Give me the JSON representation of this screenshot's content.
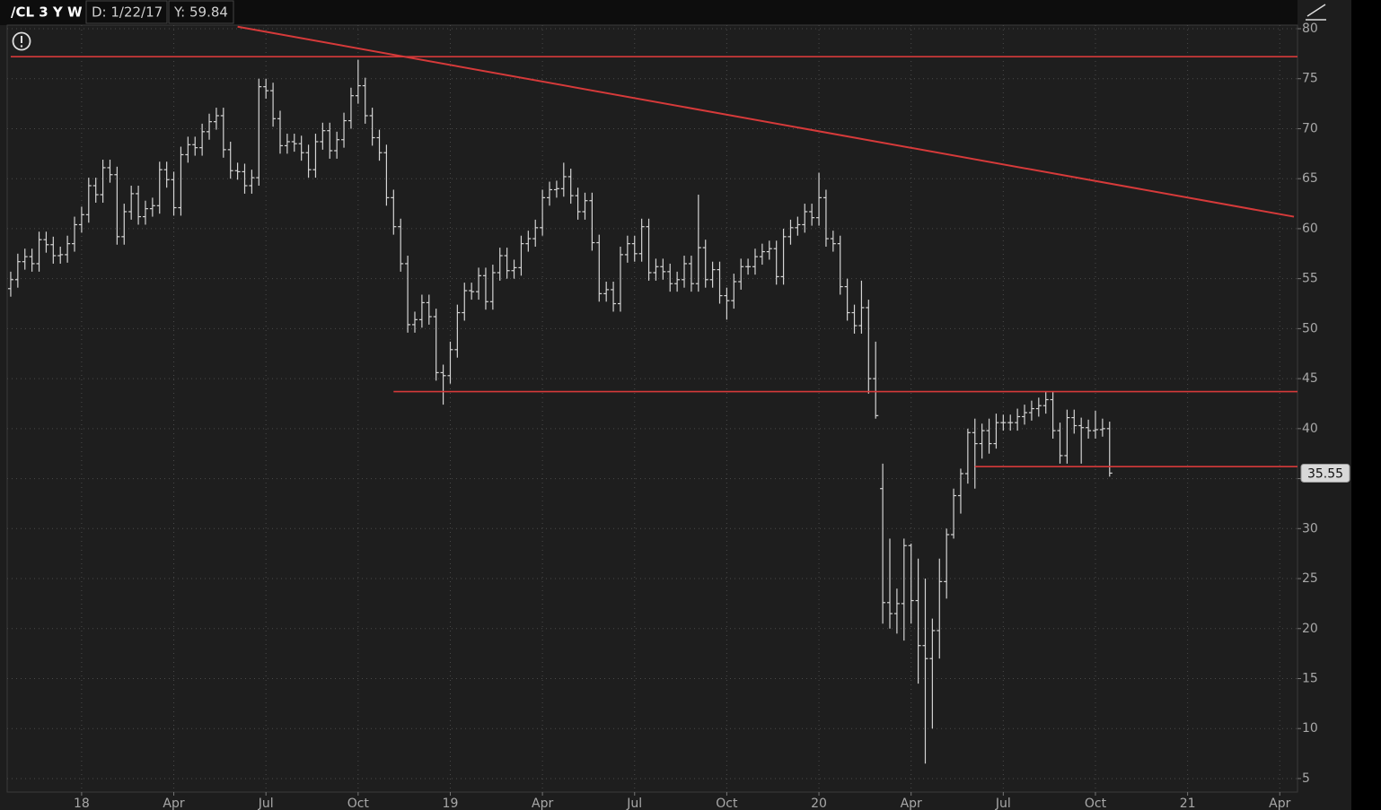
{
  "chart_data": {
    "type": "ohlc",
    "title": "/CL 3 Y W",
    "cursor_date": "D: 1/22/17",
    "cursor_value": "Y: 59.84",
    "color": "#d4d4d4",
    "level_color": "#d63a3a",
    "grid": true,
    "ylim": [
      3.65,
      80.36
    ],
    "yticks": [
      5,
      10,
      15,
      20,
      25,
      30,
      35,
      40,
      45,
      50,
      55,
      60,
      65,
      70,
      75,
      80
    ],
    "categories": [
      null,
      null,
      null,
      null,
      null,
      null,
      null,
      null,
      null,
      null,
      "18",
      null,
      null,
      null,
      null,
      null,
      null,
      null,
      null,
      null,
      null,
      null,
      null,
      "Apr",
      null,
      null,
      null,
      null,
      null,
      null,
      null,
      null,
      null,
      null,
      null,
      null,
      "Jul",
      null,
      null,
      null,
      null,
      null,
      null,
      null,
      null,
      null,
      null,
      null,
      null,
      "Oct",
      null,
      null,
      null,
      null,
      null,
      null,
      null,
      null,
      null,
      null,
      null,
      null,
      "19",
      null,
      null,
      null,
      null,
      null,
      null,
      null,
      null,
      null,
      null,
      null,
      null,
      "Apr",
      null,
      null,
      null,
      null,
      null,
      null,
      null,
      null,
      null,
      null,
      null,
      null,
      "Jul",
      null,
      null,
      null,
      null,
      null,
      null,
      null,
      null,
      null,
      null,
      null,
      null,
      "Oct",
      null,
      null,
      null,
      null,
      null,
      null,
      null,
      null,
      null,
      null,
      null,
      null,
      "20",
      null,
      null,
      null,
      null,
      null,
      null,
      null,
      null,
      null,
      null,
      null,
      null,
      "Apr",
      null,
      null,
      null,
      null,
      null,
      null,
      null,
      null,
      null,
      null,
      null,
      null,
      "Jul",
      null,
      null,
      null,
      null,
      null,
      null,
      null,
      null,
      null,
      null,
      null,
      null,
      "Oct",
      null,
      null,
      null,
      null,
      null,
      null,
      null,
      null,
      null,
      null,
      null,
      null,
      "21",
      null,
      null,
      null,
      null,
      null,
      null,
      null,
      null,
      null,
      null,
      null,
      null,
      "Apr",
      null,
      null
    ],
    "open": [
      54.0,
      54.9,
      56.7,
      57.2,
      56.5,
      58.9,
      58.4,
      57.3,
      57.4,
      58.5,
      60.4,
      61.4,
      64.3,
      63.4,
      66.1,
      65.4,
      59.2,
      61.7,
      63.5,
      61.2,
      62.0,
      62.3,
      65.9,
      64.9,
      62.1,
      67.4,
      68.4,
      68.1,
      69.7,
      70.7,
      71.3,
      67.9,
      65.8,
      65.7,
      64.3,
      65.1,
      74.2,
      73.8,
      71.0,
      68.3,
      68.7,
      68.5,
      67.6,
      65.9,
      68.7,
      69.8,
      67.8,
      68.9,
      70.8,
      73.3,
      74.3,
      71.3,
      69.1,
      67.6,
      63.1,
      60.2,
      56.5,
      50.4,
      50.9,
      52.6,
      51.2,
      45.6,
      45.3,
      47.9,
      51.6,
      53.8,
      53.7,
      55.3,
      52.7,
      55.6,
      57.3,
      55.8,
      56.1,
      58.5,
      59.0,
      60.1,
      63.1,
      63.9,
      64.0,
      65.2,
      63.3,
      61.7,
      62.8,
      58.6,
      53.5,
      53.9,
      52.5,
      57.4,
      58.5,
      57.5,
      60.2,
      55.6,
      56.2,
      55.7,
      54.5,
      54.9,
      56.5,
      54.5,
      58.1,
      54.9,
      55.9,
      53.3,
      52.8,
      54.7,
      56.2,
      56.2,
      57.2,
      57.7,
      58.0,
      55.2,
      59.2,
      60.1,
      60.4,
      61.7,
      61.1,
      63.1,
      59.0,
      58.5,
      54.2,
      51.6,
      50.3,
      52.1,
      45.0,
      34.0,
      22.6,
      21.5,
      22.5,
      28.3,
      22.8,
      18.3,
      17.0,
      19.8,
      24.7,
      29.4,
      33.3,
      35.5,
      39.6,
      38.5,
      39.8,
      38.5,
      40.6,
      40.6,
      40.6,
      41.2,
      41.6,
      42.0,
      42.3,
      42.9,
      39.8,
      37.3,
      41.1,
      40.3,
      40.1,
      39.8,
      39.9,
      40.0,
      null,
      null,
      null,
      null,
      null,
      null,
      null,
      null,
      null,
      null,
      null,
      null,
      null,
      null,
      null,
      null,
      null,
      null,
      null,
      null,
      null,
      null,
      null,
      null,
      null,
      null
    ],
    "high": [
      55.7,
      57.5,
      58.0,
      58.0,
      59.7,
      59.7,
      59.2,
      58.2,
      59.3,
      61.2,
      62.2,
      65.1,
      65.1,
      66.9,
      66.9,
      66.2,
      62.5,
      64.3,
      64.3,
      62.8,
      63.1,
      66.7,
      66.7,
      65.7,
      68.2,
      69.2,
      69.2,
      70.5,
      71.5,
      72.1,
      72.1,
      68.7,
      66.6,
      66.5,
      65.9,
      75.0,
      75.0,
      74.6,
      71.8,
      69.5,
      69.5,
      69.3,
      68.4,
      69.5,
      70.6,
      70.6,
      69.7,
      71.6,
      74.1,
      76.9,
      75.1,
      72.1,
      69.9,
      68.4,
      63.9,
      61.0,
      57.3,
      51.7,
      53.4,
      53.4,
      52.0,
      46.4,
      48.7,
      52.4,
      54.6,
      54.6,
      56.1,
      56.1,
      56.4,
      58.1,
      58.1,
      56.9,
      59.3,
      59.8,
      60.9,
      63.9,
      64.7,
      64.8,
      66.6,
      66.0,
      64.1,
      63.6,
      63.6,
      59.4,
      54.7,
      54.7,
      58.2,
      59.3,
      59.3,
      61.0,
      61.0,
      57.0,
      57.0,
      56.5,
      55.7,
      57.3,
      57.3,
      63.4,
      58.9,
      56.7,
      56.7,
      54.1,
      55.5,
      57.0,
      57.0,
      58.0,
      58.5,
      58.8,
      58.8,
      60.0,
      60.9,
      61.2,
      62.5,
      62.5,
      65.6,
      63.9,
      59.8,
      59.3,
      55.0,
      52.4,
      54.8,
      52.9,
      48.7,
      36.5,
      29.0,
      24.0,
      29.0,
      28.5,
      27.0,
      25.0,
      21.0,
      27.0,
      30.0,
      34.0,
      36.0,
      40.0,
      41.0,
      40.5,
      41.0,
      41.5,
      41.4,
      41.4,
      42.0,
      42.4,
      42.8,
      43.1,
      43.7,
      43.7,
      40.6,
      41.9,
      41.9,
      41.1,
      40.9,
      41.8,
      41.0,
      40.7,
      null,
      null,
      null,
      null,
      null,
      null,
      null,
      null,
      null,
      null,
      null,
      null,
      null,
      null,
      null,
      null,
      null,
      null,
      null,
      null,
      null,
      null,
      null,
      null,
      null,
      null
    ],
    "low": [
      53.2,
      54.1,
      55.9,
      55.7,
      55.7,
      57.6,
      56.5,
      56.5,
      56.6,
      57.7,
      59.6,
      60.6,
      62.6,
      62.6,
      64.6,
      58.4,
      58.4,
      60.9,
      60.4,
      60.4,
      61.2,
      61.5,
      64.1,
      61.3,
      61.3,
      66.6,
      67.3,
      67.3,
      68.9,
      69.9,
      67.1,
      65.0,
      64.9,
      63.5,
      63.5,
      64.3,
      73.0,
      70.2,
      67.5,
      67.5,
      67.7,
      66.8,
      65.1,
      65.1,
      67.9,
      67.0,
      67.0,
      68.1,
      70.0,
      72.5,
      70.5,
      68.3,
      66.8,
      62.3,
      59.4,
      55.7,
      49.6,
      49.6,
      50.1,
      50.4,
      44.8,
      42.4,
      44.5,
      47.1,
      50.8,
      52.9,
      52.9,
      51.9,
      51.9,
      54.8,
      55.0,
      55.0,
      55.3,
      57.7,
      58.2,
      59.3,
      62.3,
      63.1,
      63.2,
      62.5,
      60.9,
      60.9,
      57.8,
      52.7,
      52.7,
      51.7,
      51.7,
      56.6,
      56.7,
      56.7,
      54.8,
      54.8,
      54.9,
      53.7,
      53.7,
      54.1,
      53.7,
      53.7,
      54.1,
      54.1,
      52.5,
      50.9,
      52.0,
      53.9,
      55.4,
      55.4,
      56.4,
      56.9,
      54.4,
      54.4,
      58.4,
      59.3,
      59.6,
      60.3,
      60.3,
      58.2,
      57.7,
      53.4,
      50.8,
      49.5,
      49.5,
      43.5,
      41.0,
      20.5,
      20.0,
      19.5,
      18.8,
      20.5,
      14.5,
      6.5,
      10.0,
      17.0,
      23.0,
      29.0,
      31.5,
      34.5,
      34.0,
      37.0,
      37.5,
      38.0,
      39.8,
      39.8,
      39.8,
      40.4,
      40.8,
      41.2,
      41.5,
      39.0,
      36.5,
      36.5,
      39.5,
      36.5,
      39.0,
      39.0,
      39.2,
      35.2,
      null,
      null,
      null,
      null,
      null,
      null,
      null,
      null,
      null,
      null,
      null,
      null,
      null,
      null,
      null,
      null,
      null,
      null,
      null,
      null,
      null,
      null,
      null,
      null,
      null,
      null
    ],
    "close": [
      54.9,
      56.7,
      57.2,
      56.5,
      58.9,
      58.4,
      57.3,
      57.4,
      58.5,
      60.4,
      61.4,
      64.3,
      63.4,
      66.1,
      65.4,
      59.2,
      61.7,
      63.5,
      61.2,
      62.0,
      62.3,
      65.9,
      64.9,
      62.1,
      67.4,
      68.4,
      68.1,
      69.7,
      70.7,
      71.3,
      67.9,
      65.8,
      65.7,
      64.3,
      65.1,
      74.2,
      73.8,
      71.0,
      68.3,
      68.7,
      68.5,
      67.6,
      65.9,
      68.7,
      69.8,
      67.8,
      68.9,
      70.8,
      73.3,
      74.3,
      71.3,
      69.1,
      67.6,
      63.1,
      60.2,
      56.5,
      50.4,
      50.9,
      52.6,
      51.2,
      45.6,
      45.3,
      47.9,
      51.6,
      53.8,
      53.7,
      55.3,
      52.7,
      55.6,
      57.3,
      55.8,
      56.1,
      58.5,
      59.0,
      60.1,
      63.1,
      63.9,
      64.0,
      65.2,
      63.3,
      61.7,
      62.8,
      58.6,
      53.5,
      53.9,
      52.5,
      57.4,
      58.5,
      57.5,
      60.2,
      55.6,
      56.2,
      55.7,
      54.5,
      54.9,
      56.5,
      54.5,
      58.1,
      54.9,
      55.9,
      53.3,
      52.8,
      54.7,
      56.2,
      56.2,
      57.2,
      57.7,
      58.0,
      55.2,
      59.2,
      60.1,
      60.4,
      61.7,
      61.1,
      63.1,
      59.0,
      58.5,
      54.2,
      51.6,
      50.3,
      52.1,
      45.0,
      41.3,
      22.6,
      21.5,
      22.5,
      28.3,
      22.8,
      18.3,
      17.0,
      19.8,
      24.7,
      29.4,
      33.3,
      35.5,
      39.6,
      38.5,
      39.8,
      38.5,
      40.6,
      40.6,
      40.6,
      41.2,
      41.6,
      42.0,
      42.3,
      42.9,
      39.8,
      37.3,
      41.1,
      40.3,
      40.1,
      39.8,
      39.9,
      40.0,
      35.55,
      null,
      null,
      null,
      null,
      null,
      null,
      null,
      null,
      null,
      null,
      null,
      null,
      null,
      null,
      null,
      null,
      null,
      null,
      null,
      null,
      null,
      null,
      null,
      null,
      null,
      null
    ],
    "last_index": 155,
    "levels": [
      {
        "value": 77.2,
        "start": 0
      },
      {
        "value": 43.7,
        "start": 54
      },
      {
        "value": 36.2,
        "start": 136
      }
    ],
    "trendlines": [
      {
        "from": [
          32,
          80.2
        ],
        "to": [
          181,
          61.2
        ]
      }
    ]
  }
}
